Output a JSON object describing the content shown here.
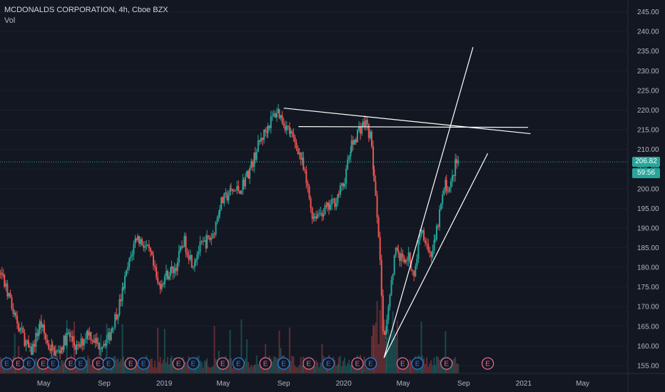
{
  "title": "MCDONALDS CORPORATION, 4h, Cboe BZX",
  "indicator_label": "Vol",
  "colors": {
    "background": "#131722",
    "up": "#26a69a",
    "down": "#ef5350",
    "drawing": "#ffffff",
    "price_line": "#26a69a",
    "axis_text": "#b2b5be",
    "earnings_red": "#e06b8a",
    "earnings_blue": "#3179d5"
  },
  "chart_data": {
    "type": "candlestick",
    "y_axis": {
      "ylim": [
        153,
        248
      ],
      "ticks": [
        "155.00",
        "160.00",
        "165.00",
        "170.00",
        "175.00",
        "180.00",
        "185.00",
        "190.00",
        "195.00",
        "200.00",
        "205.00",
        "210.00",
        "215.00",
        "220.00",
        "225.00",
        "230.00",
        "235.00",
        "240.00",
        "245.00"
      ],
      "position": "right"
    },
    "x_axis": {
      "labels": [
        "May",
        "Sep",
        "2019",
        "May",
        "Sep",
        "2020",
        "May",
        "Sep",
        "2021",
        "May"
      ],
      "range": [
        "2018-02",
        "2021-08"
      ]
    },
    "last_price": "206.82",
    "countdown": "59:56",
    "price_path": [
      [
        "2018-02-05",
        178
      ],
      [
        "2018-02-25",
        170
      ],
      [
        "2018-03-15",
        164
      ],
      [
        "2018-04-05",
        158
      ],
      [
        "2018-04-25",
        166
      ],
      [
        "2018-05-10",
        160
      ],
      [
        "2018-05-30",
        158
      ],
      [
        "2018-06-20",
        163
      ],
      [
        "2018-07-10",
        159
      ],
      [
        "2018-07-30",
        164
      ],
      [
        "2018-08-20",
        160
      ],
      [
        "2018-09-10",
        162
      ],
      [
        "2018-10-01",
        170
      ],
      [
        "2018-10-20",
        180
      ],
      [
        "2018-11-05",
        188
      ],
      [
        "2018-11-20",
        186
      ],
      [
        "2018-12-05",
        183
      ],
      [
        "2018-12-20",
        175
      ],
      [
        "2019-01-05",
        178
      ],
      [
        "2019-01-25",
        180
      ],
      [
        "2019-02-10",
        187
      ],
      [
        "2019-02-28",
        181
      ],
      [
        "2019-03-15",
        185
      ],
      [
        "2019-04-10",
        188
      ],
      [
        "2019-04-25",
        196
      ],
      [
        "2019-05-15",
        199
      ],
      [
        "2019-06-05",
        200
      ],
      [
        "2019-06-25",
        205
      ],
      [
        "2019-07-15",
        212
      ],
      [
        "2019-08-05",
        217
      ],
      [
        "2019-08-20",
        220
      ],
      [
        "2019-09-01",
        217
      ],
      [
        "2019-09-15",
        214
      ],
      [
        "2019-10-01",
        210
      ],
      [
        "2019-10-10",
        206
      ],
      [
        "2019-10-20",
        200
      ],
      [
        "2019-10-30",
        193
      ],
      [
        "2019-11-15",
        194
      ],
      [
        "2019-12-01",
        195
      ],
      [
        "2019-12-15",
        197
      ],
      [
        "2020-01-01",
        201
      ],
      [
        "2020-01-15",
        210
      ],
      [
        "2020-02-01",
        215
      ],
      [
        "2020-02-15",
        217
      ],
      [
        "2020-02-25",
        213
      ],
      [
        "2020-03-05",
        200
      ],
      [
        "2020-03-12",
        190
      ],
      [
        "2020-03-23",
        160
      ],
      [
        "2020-04-01",
        170
      ],
      [
        "2020-04-15",
        184
      ],
      [
        "2020-04-30",
        182
      ],
      [
        "2020-05-10",
        183
      ],
      [
        "2020-05-25",
        178
      ],
      [
        "2020-06-05",
        190
      ],
      [
        "2020-06-15",
        188
      ],
      [
        "2020-06-25",
        183
      ],
      [
        "2020-07-05",
        186
      ],
      [
        "2020-07-15",
        194
      ],
      [
        "2020-07-25",
        201
      ],
      [
        "2020-08-05",
        200
      ],
      [
        "2020-08-15",
        206
      ],
      [
        "2020-08-21",
        207
      ]
    ],
    "trendlines": [
      {
        "from": [
          "2019-09-01",
          220.5
        ],
        "to": [
          "2021-01-15",
          214
        ]
      },
      {
        "from": [
          "2019-10-01",
          215.8
        ],
        "to": [
          "2021-01-10",
          215.6
        ]
      },
      {
        "from": [
          "2020-03-23",
          157
        ],
        "to": [
          "2020-09-20",
          236
        ]
      },
      {
        "from": [
          "2020-03-23",
          157
        ],
        "to": [
          "2020-10-20",
          209
        ]
      }
    ],
    "earnings_markers": [
      {
        "date": "2018-01-30",
        "color": "red"
      },
      {
        "date": "2018-02-15",
        "color": "blue"
      },
      {
        "date": "2018-03-10",
        "color": "red"
      },
      {
        "date": "2018-04-01",
        "color": "blue"
      },
      {
        "date": "2018-04-30",
        "color": "red"
      },
      {
        "date": "2018-05-20",
        "color": "blue"
      },
      {
        "date": "2018-06-25",
        "color": "red"
      },
      {
        "date": "2018-07-15",
        "color": "blue"
      },
      {
        "date": "2018-08-20",
        "color": "red"
      },
      {
        "date": "2018-09-10",
        "color": "blue"
      },
      {
        "date": "2018-10-25",
        "color": "red"
      },
      {
        "date": "2018-11-20",
        "color": "blue"
      },
      {
        "date": "2019-01-30",
        "color": "red"
      },
      {
        "date": "2019-03-01",
        "color": "blue"
      },
      {
        "date": "2019-04-30",
        "color": "red"
      },
      {
        "date": "2019-06-01",
        "color": "blue"
      },
      {
        "date": "2019-07-26",
        "color": "red"
      },
      {
        "date": "2019-09-01",
        "color": "blue"
      },
      {
        "date": "2019-10-22",
        "color": "red"
      },
      {
        "date": "2019-12-01",
        "color": "blue"
      },
      {
        "date": "2020-01-29",
        "color": "red"
      },
      {
        "date": "2020-02-25",
        "color": "blue"
      },
      {
        "date": "2020-04-30",
        "color": "red"
      },
      {
        "date": "2020-05-30",
        "color": "blue"
      },
      {
        "date": "2020-07-28",
        "color": "red"
      },
      {
        "date": "2020-10-20",
        "color": "red"
      }
    ],
    "earnings_label": "E"
  }
}
